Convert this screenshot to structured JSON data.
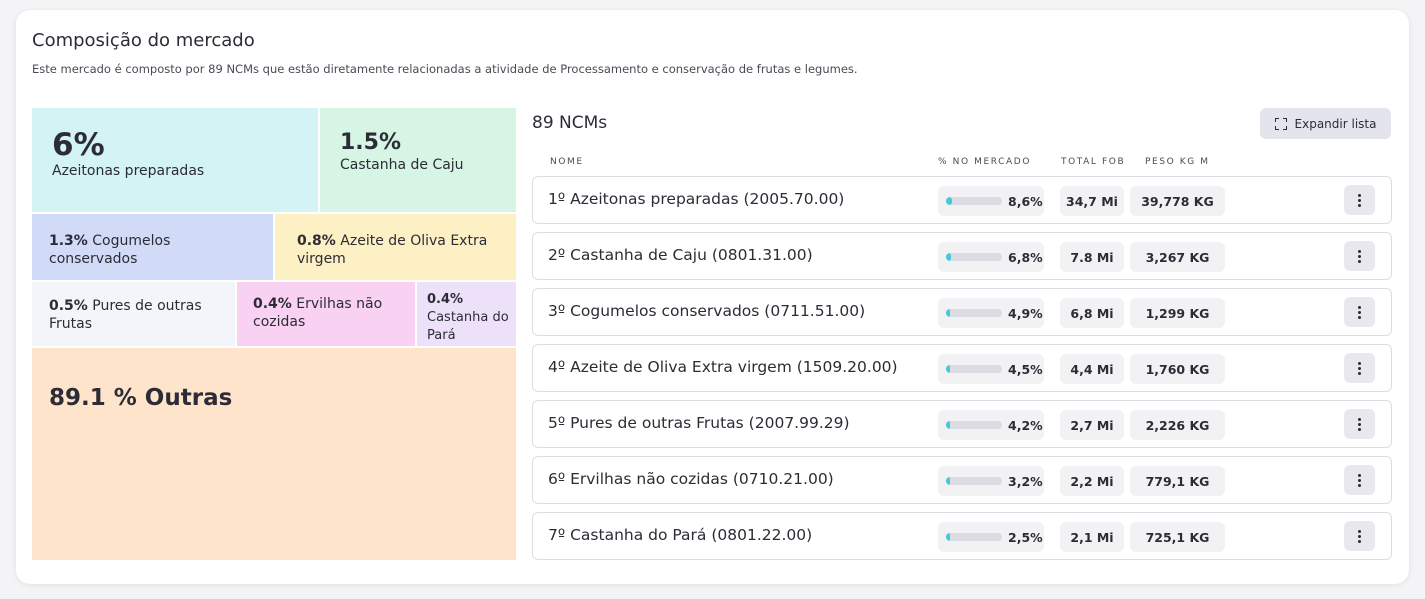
{
  "header": {
    "title": "Composição do mercado",
    "subtitle": "Este mercado é composto por 89 NCMs que estão diretamente relacionadas a atividade de Processamento e conservação de frutas e legumes."
  },
  "treemap": {
    "tiles": [
      {
        "pct": "6%",
        "label": "Azeitonas preparadas",
        "color": "#d3f3f5"
      },
      {
        "pct": "1.5%",
        "label": "Castanha de Caju",
        "color": "#d6f5e4"
      },
      {
        "pct": "1.3%",
        "label": "Cogumelos conservados",
        "color": "#d1daf7"
      },
      {
        "pct": "0.8%",
        "label": "Azeite de Oliva Extra virgem",
        "color": "#fdf0c4"
      },
      {
        "pct": "0.5%",
        "label": "Pures de outras Frutas",
        "color": "#f4f5fb"
      },
      {
        "pct": "0.4%",
        "label": "Ervilhas não cozidas",
        "color": "#f9d1f2"
      },
      {
        "pct": "0.4%",
        "label": "Castanha do Pará",
        "color": "#ede1fa"
      }
    ],
    "outras": {
      "label": "89.1 % Outras",
      "color": "#ffe4cc"
    }
  },
  "list": {
    "title": "89 NCMs",
    "expand_label": "Expandir lista",
    "columns": {
      "nome": "NOME",
      "share": "% NO MERCADO",
      "fob": "TOTAL FOB",
      "peso": "PESO KG M"
    },
    "accent_color": "#45c8d8",
    "items": [
      {
        "name": "1º Azeitonas preparadas (2005.70.00)",
        "share": "8,6%",
        "share_value": 8.6,
        "fob": "34,7 Mi",
        "peso": "39,778 KG"
      },
      {
        "name": "2º Castanha de Caju (0801.31.00)",
        "share": "6,8%",
        "share_value": 6.8,
        "fob": "7.8 Mi",
        "peso": "3,267 KG"
      },
      {
        "name": "3º Cogumelos conservados (0711.51.00)",
        "share": "4,9%",
        "share_value": 4.9,
        "fob": "6,8 Mi",
        "peso": "1,299 KG"
      },
      {
        "name": "4º Azeite de Oliva Extra virgem (1509.20.00)",
        "share": "4,5%",
        "share_value": 4.5,
        "fob": "4,4 Mi",
        "peso": "1,760 KG"
      },
      {
        "name": "5º Pures de outras Frutas (2007.99.29)",
        "share": "4,2%",
        "share_value": 4.2,
        "fob": "2,7 Mi",
        "peso": "2,226 KG"
      },
      {
        "name": "6º Ervilhas não cozidas (0710.21.00)",
        "share": "3,2%",
        "share_value": 3.2,
        "fob": "2,2 Mi",
        "peso": "779,1 KG"
      },
      {
        "name": "7º Castanha do Pará (0801.22.00)",
        "share": "2,5%",
        "share_value": 2.5,
        "fob": "2,1 Mi",
        "peso": "725,1 KG"
      }
    ]
  }
}
